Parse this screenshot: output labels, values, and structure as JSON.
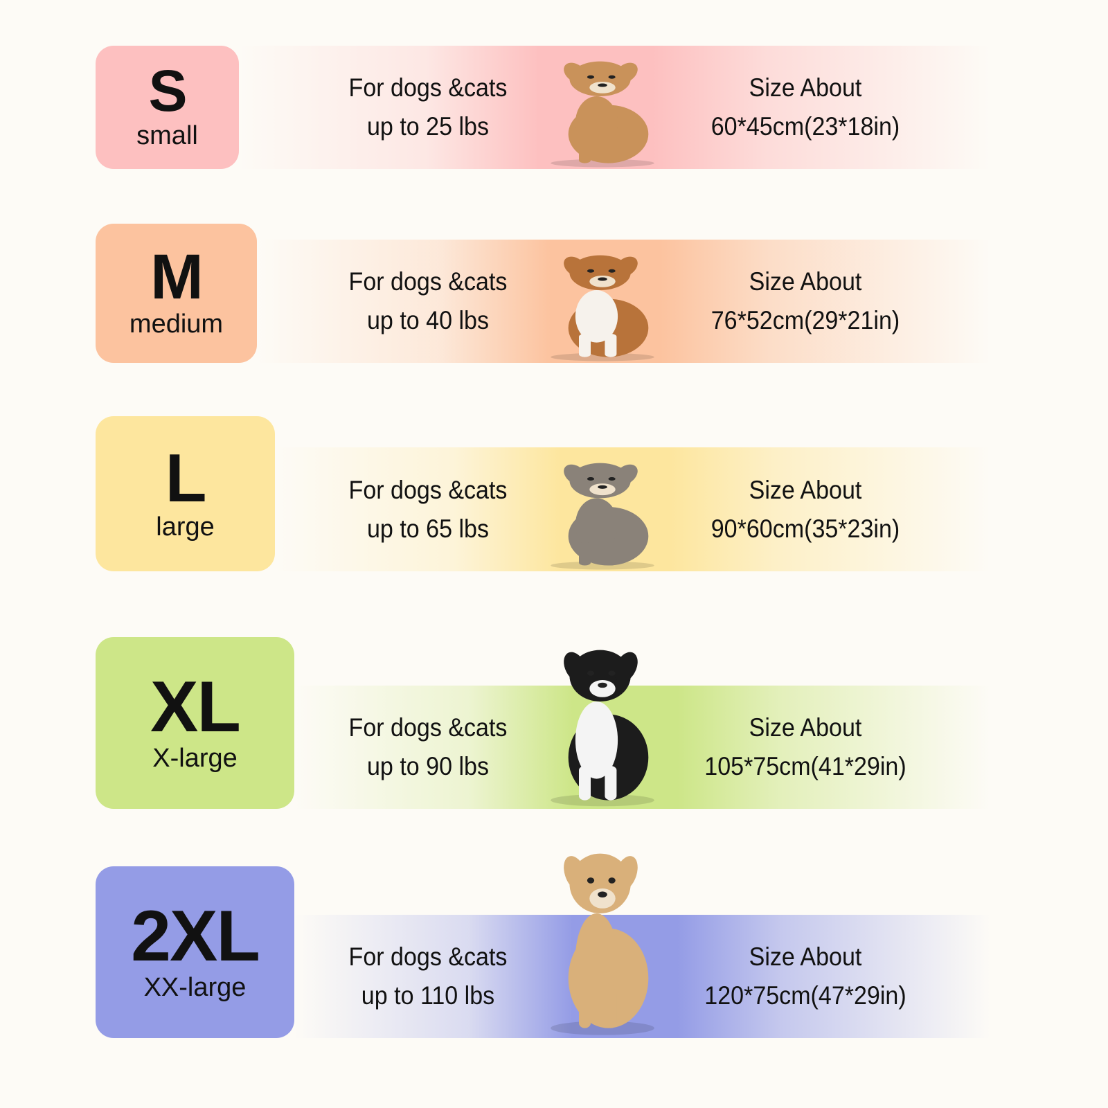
{
  "sizes": [
    {
      "code": "S",
      "name": "small",
      "line1": "For dogs &cats",
      "line2": "up to 25 lbs",
      "size_title": "Size About",
      "size_value": "60*45cm(23*18in)",
      "color": "#fdc0c0",
      "dog_icon": "poodle-dog",
      "fur": "#c9925a"
    },
    {
      "code": "M",
      "name": "medium",
      "line1": "For dogs &cats",
      "line2": "up to 40 lbs",
      "size_title": "Size About",
      "size_value": "76*52cm(29*21in)",
      "color": "#fcc39f",
      "dog_icon": "corgi-dog",
      "fur": "#b8733a"
    },
    {
      "code": "L",
      "name": "large",
      "line1": "For dogs &cats",
      "line2": "up to 65 lbs",
      "size_title": "Size About",
      "size_value": "90*60cm(35*23in)",
      "color": "#fde69e",
      "dog_icon": "sheepdog-dog",
      "fur": "#8a8279"
    },
    {
      "code": "XL",
      "name": "X-large",
      "line1": "For dogs &cats",
      "line2": "up to 90 lbs",
      "size_title": "Size About",
      "size_value": "105*75cm(41*29in)",
      "color": "#cde688",
      "dog_icon": "border-collie-dog",
      "fur": "#1c1c1c"
    },
    {
      "code": "2XL",
      "name": "XX-large",
      "line1": "For dogs &cats",
      "line2": "up to 110 lbs",
      "size_title": "Size About",
      "size_value": "120*75cm(47*29in)",
      "color": "#949ce6",
      "dog_icon": "labrador-dog",
      "fur": "#d9b07a"
    }
  ]
}
